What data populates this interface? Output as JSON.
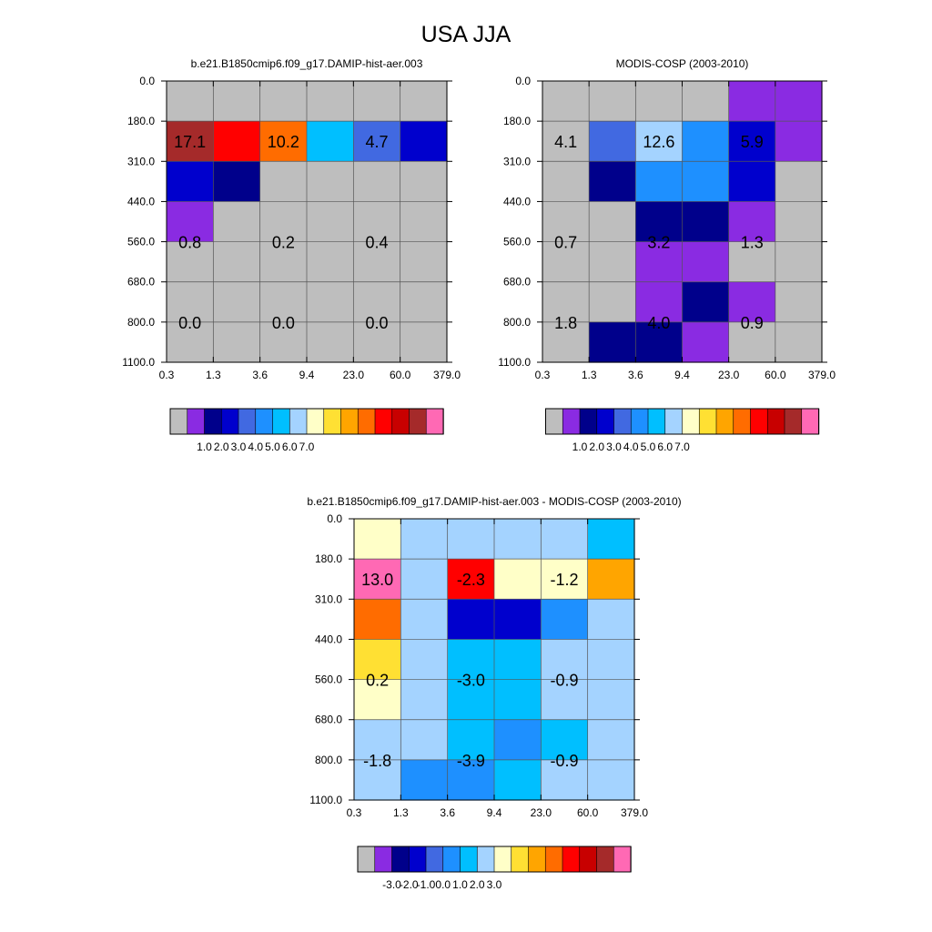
{
  "figure": {
    "title": "USA JJA"
  },
  "chart_data": [
    {
      "type": "heatmap",
      "title": "b.e21.B1850cmip6.f09_g17.DAMIP-hist-aer.003",
      "xlabel": "",
      "ylabel": "",
      "x_ticks": [
        "0.3",
        "1.3",
        "3.6",
        "9.4",
        "23.0",
        "60.0",
        "379.0"
      ],
      "y_ticks": [
        "0.0",
        "180.0",
        "310.0",
        "440.0",
        "560.0",
        "680.0",
        "800.0",
        "1100.0"
      ],
      "grid": true,
      "cells": [
        [
          "gray",
          "gray",
          "gray",
          "gray",
          "gray",
          "gray"
        ],
        [
          "brown",
          "red",
          "orange",
          "skyblue",
          "royalblue",
          "blue"
        ],
        [
          "blue",
          "darkblue",
          "gray",
          "gray",
          "gray",
          "gray"
        ],
        [
          "purple",
          "gray",
          "gray",
          "gray",
          "gray",
          "gray"
        ],
        [
          "gray",
          "gray",
          "gray",
          "gray",
          "gray",
          "gray"
        ],
        [
          "gray",
          "gray",
          "gray",
          "gray",
          "gray",
          "gray"
        ],
        [
          "gray",
          "gray",
          "gray",
          "gray",
          "gray",
          "gray"
        ]
      ],
      "annotations": [
        {
          "col": 0.5,
          "row": 1.5,
          "text": "17.1"
        },
        {
          "col": 2.5,
          "row": 1.5,
          "text": "10.2"
        },
        {
          "col": 4.5,
          "row": 1.5,
          "text": "4.7"
        },
        {
          "col": 0.5,
          "row": 4.0,
          "text": "0.8"
        },
        {
          "col": 2.5,
          "row": 4.0,
          "text": "0.2"
        },
        {
          "col": 4.5,
          "row": 4.0,
          "text": "0.4"
        },
        {
          "col": 0.5,
          "row": 6.0,
          "text": "0.0"
        },
        {
          "col": 2.5,
          "row": 6.0,
          "text": "0.0"
        },
        {
          "col": 4.5,
          "row": 6.0,
          "text": "0.0"
        }
      ],
      "colorbar": {
        "colors": [
          "gray",
          "purple",
          "darkblue",
          "blue",
          "royalblue",
          "dodger",
          "skyblue",
          "lightblue",
          "lightyellow",
          "yellow",
          "gold",
          "orange",
          "red",
          "crimson",
          "brown",
          "pink"
        ],
        "labels": [
          "1.0",
          "2.0",
          "3.0",
          "4.0",
          "5.0",
          "6.0",
          "7.0"
        ]
      }
    },
    {
      "type": "heatmap",
      "title": "MODIS-COSP (2003-2010)",
      "xlabel": "",
      "ylabel": "",
      "x_ticks": [
        "0.3",
        "1.3",
        "3.6",
        "9.4",
        "23.0",
        "60.0",
        "379.0"
      ],
      "y_ticks": [
        "0.0",
        "180.0",
        "310.0",
        "440.0",
        "560.0",
        "680.0",
        "800.0",
        "1100.0"
      ],
      "grid": true,
      "cells": [
        [
          "gray",
          "gray",
          "gray",
          "gray",
          "purple",
          "purple"
        ],
        [
          "gray",
          "royalblue",
          "lightblue",
          "dodger",
          "blue",
          "purple"
        ],
        [
          "gray",
          "darkblue",
          "dodger",
          "dodger",
          "blue",
          "gray"
        ],
        [
          "gray",
          "gray",
          "darkblue",
          "darkblue",
          "purple",
          "gray"
        ],
        [
          "gray",
          "gray",
          "purple",
          "purple",
          "gray",
          "gray"
        ],
        [
          "gray",
          "gray",
          "purple",
          "darkblue",
          "purple",
          "gray"
        ],
        [
          "gray",
          "darkblue",
          "darkblue",
          "purple",
          "gray",
          "gray"
        ]
      ],
      "annotations": [
        {
          "col": 0.5,
          "row": 1.5,
          "text": "4.1"
        },
        {
          "col": 2.5,
          "row": 1.5,
          "text": "12.6"
        },
        {
          "col": 4.5,
          "row": 1.5,
          "text": "5.9"
        },
        {
          "col": 0.5,
          "row": 4.0,
          "text": "0.7"
        },
        {
          "col": 2.5,
          "row": 4.0,
          "text": "3.2"
        },
        {
          "col": 4.5,
          "row": 4.0,
          "text": "1.3"
        },
        {
          "col": 0.5,
          "row": 6.0,
          "text": "1.8"
        },
        {
          "col": 2.5,
          "row": 6.0,
          "text": "4.0"
        },
        {
          "col": 4.5,
          "row": 6.0,
          "text": "0.9"
        }
      ],
      "colorbar": {
        "colors": [
          "gray",
          "purple",
          "darkblue",
          "blue",
          "royalblue",
          "dodger",
          "skyblue",
          "lightblue",
          "lightyellow",
          "yellow",
          "gold",
          "orange",
          "red",
          "crimson",
          "brown",
          "pink"
        ],
        "labels": [
          "1.0",
          "2.0",
          "3.0",
          "4.0",
          "5.0",
          "6.0",
          "7.0"
        ]
      }
    },
    {
      "type": "heatmap",
      "title": "b.e21.B1850cmip6.f09_g17.DAMIP-hist-aer.003 - MODIS-COSP (2003-2010)",
      "xlabel": "",
      "ylabel": "",
      "x_ticks": [
        "0.3",
        "1.3",
        "3.6",
        "9.4",
        "23.0",
        "60.0",
        "379.0"
      ],
      "y_ticks": [
        "0.0",
        "180.0",
        "310.0",
        "440.0",
        "560.0",
        "680.0",
        "800.0",
        "1100.0"
      ],
      "grid": true,
      "cells": [
        [
          "lightyellow",
          "lightblue",
          "lightblue",
          "lightblue",
          "lightblue",
          "skyblue"
        ],
        [
          "pink",
          "lightblue",
          "red",
          "lightyellow",
          "lightyellow",
          "gold"
        ],
        [
          "orange",
          "lightblue",
          "blue",
          "blue",
          "dodger",
          "lightblue"
        ],
        [
          "yellow",
          "lightblue",
          "skyblue",
          "skyblue",
          "lightblue",
          "lightblue"
        ],
        [
          "lightyellow",
          "lightblue",
          "skyblue",
          "skyblue",
          "lightblue",
          "lightblue"
        ],
        [
          "lightblue",
          "lightblue",
          "skyblue",
          "dodger",
          "skyblue",
          "lightblue"
        ],
        [
          "lightblue",
          "dodger",
          "dodger",
          "skyblue",
          "lightblue",
          "lightblue"
        ]
      ],
      "annotations": [
        {
          "col": 0.5,
          "row": 1.5,
          "text": "13.0"
        },
        {
          "col": 2.5,
          "row": 1.5,
          "text": "-2.3"
        },
        {
          "col": 4.5,
          "row": 1.5,
          "text": "-1.2"
        },
        {
          "col": 0.5,
          "row": 4.0,
          "text": "0.2"
        },
        {
          "col": 2.5,
          "row": 4.0,
          "text": "-3.0"
        },
        {
          "col": 4.5,
          "row": 4.0,
          "text": "-0.9"
        },
        {
          "col": 0.5,
          "row": 6.0,
          "text": "-1.8"
        },
        {
          "col": 2.5,
          "row": 6.0,
          "text": "-3.9"
        },
        {
          "col": 4.5,
          "row": 6.0,
          "text": "-0.9"
        }
      ],
      "colorbar": {
        "colors": [
          "gray",
          "purple",
          "darkblue",
          "blue",
          "royalblue",
          "dodger",
          "skyblue",
          "lightblue",
          "lightyellow",
          "yellow",
          "gold",
          "orange",
          "red",
          "crimson",
          "brown",
          "pink"
        ],
        "labels": [
          "-3.0",
          "-2.0",
          "-1.0",
          "0.0",
          "1.0",
          "2.0",
          "3.0"
        ]
      }
    }
  ],
  "palette": {
    "gray": "#bebebe",
    "purple": "#8a2be2",
    "darkblue": "#00008b",
    "blue": "#0000cd",
    "royalblue": "#4169e1",
    "dodger": "#1e90ff",
    "skyblue": "#00bfff",
    "lightblue": "#a4d3ff",
    "lightyellow": "#ffffc8",
    "yellow": "#ffe033",
    "gold": "#ffa500",
    "orange": "#ff6c00",
    "red": "#ff0000",
    "crimson": "#c80000",
    "brown": "#a52a2a",
    "pink": "#ff69b4"
  }
}
